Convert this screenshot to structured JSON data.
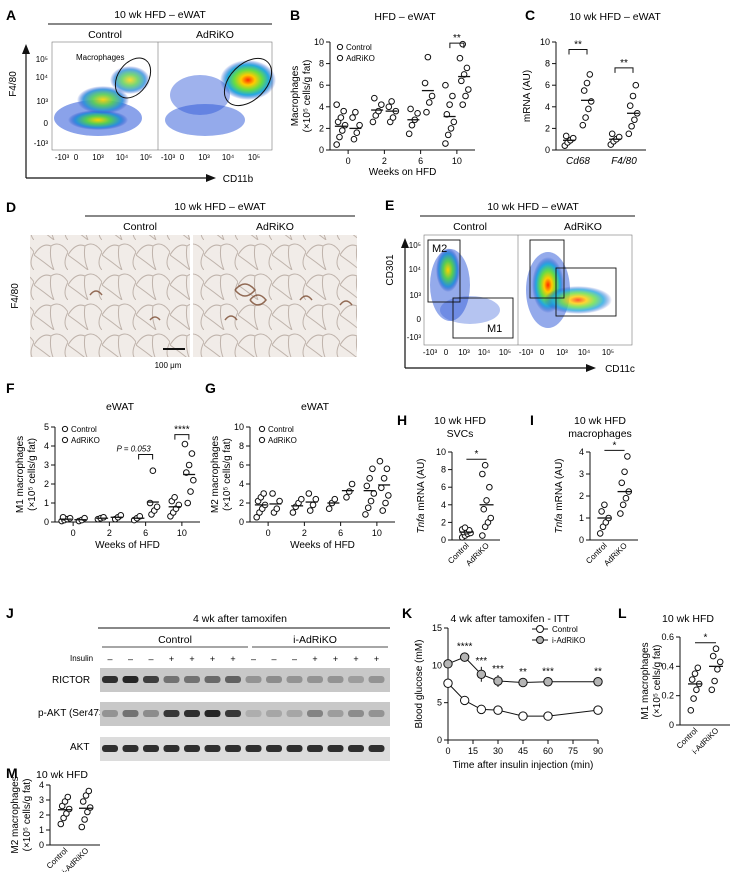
{
  "colors": {
    "ink": "#111111",
    "marker_fill_open": "#ffffff",
    "marker_fill_gray": "#b5b5b5",
    "tissue": "#e7e1dc",
    "stain": "#6b3a22",
    "blot_band": "#2b2b2b",
    "blot_bg": "#cfcfcf"
  },
  "panels": {
    "A": {
      "letter": "A",
      "title": "10 wk HFD – eWAT",
      "col1": "Control",
      "col2": "AdRiKO",
      "gate_label": "Macrophages",
      "ylabel": "F4/80",
      "xlabel": "CD11b",
      "y_ticks": [
        "10⁵",
        "10⁴",
        "10³",
        "0",
        "-10³"
      ],
      "x_ticks": [
        "-10³",
        "0",
        "10³",
        "10⁴",
        "10⁵"
      ]
    },
    "B": {
      "letter": "B"
    },
    "C": {
      "letter": "C"
    },
    "D": {
      "letter": "D",
      "title": "10 wk HFD – eWAT",
      "col1": "Control",
      "col2": "AdRiKO",
      "ylabel": "F4/80",
      "scale_bar": "100 μm"
    },
    "E": {
      "letter": "E",
      "title": "10 wk HFD – eWAT",
      "col1": "Control",
      "col2": "AdRiKO",
      "gate1": "M2",
      "gate2": "M1",
      "ylabel": "CD301",
      "xlabel": "CD11c",
      "y_ticks": [
        "10⁵",
        "10⁴",
        "10³",
        "0",
        "-10³"
      ],
      "x_ticks": [
        "-10³",
        "0",
        "10³",
        "10⁴",
        "10⁵"
      ]
    },
    "F": {
      "letter": "F"
    },
    "G": {
      "letter": "G"
    },
    "H": {
      "letter": "H"
    },
    "I": {
      "letter": "I"
    },
    "J": {
      "letter": "J",
      "title": "4 wk after tamoxifen",
      "group1": "Control",
      "group2": "i-AdRiKO",
      "insulin_label": "Insulin",
      "insulin_signs": [
        "–",
        "–",
        "–",
        "+",
        "+",
        "+",
        "+",
        "–",
        "–",
        "–",
        "+",
        "+",
        "+",
        "+"
      ],
      "rows": [
        "RICTOR",
        "p-AKT (Ser473)",
        "AKT"
      ]
    },
    "K": {
      "letter": "K"
    },
    "L": {
      "letter": "L"
    },
    "M": {
      "letter": "M"
    }
  },
  "chart_data": [
    {
      "id": "B",
      "type": "scatter",
      "title": "HFD – eWAT",
      "xlabel": "Weeks on HFD",
      "ylabel": "Macrophages\n(×10⁵ cells/g fat)",
      "ylim": [
        0,
        10
      ],
      "yticks": [
        0,
        2,
        4,
        6,
        8,
        10
      ],
      "categories": [
        "0",
        "2",
        "6",
        "10"
      ],
      "series": [
        {
          "name": "Control",
          "fill": "open",
          "groups": [
            [
              0.5,
              1.2,
              1.8,
              2.3,
              2.6,
              3.0,
              3.6,
              4.2
            ],
            [
              2.6,
              3.2,
              3.6,
              4.2,
              4.8
            ],
            [
              1.5,
              2.3,
              2.8,
              3.4,
              3.8
            ],
            [
              0.6,
              1.4,
              2.0,
              2.6,
              3.3,
              4.2,
              5.0,
              6.0
            ]
          ]
        },
        {
          "name": "AdRiKO",
          "fill": "open",
          "groups": [
            [
              1.0,
              1.6,
              2.3,
              3.0,
              3.5
            ],
            [
              2.6,
              3.0,
              3.6,
              4.0,
              4.5
            ],
            [
              3.5,
              4.4,
              5.0,
              6.2,
              8.6
            ],
            [
              4.2,
              5.0,
              5.6,
              6.4,
              7.0,
              7.6,
              8.5,
              9.8
            ]
          ]
        }
      ],
      "means": {
        "Control": [
          2.2,
          3.7,
          2.8,
          3.1
        ],
        "AdRiKO": [
          2.0,
          3.6,
          5.5,
          6.8
        ]
      },
      "annotations": [
        {
          "text": "**",
          "between": "10"
        }
      ]
    },
    {
      "id": "C",
      "type": "scatter",
      "title": "10 wk HFD – eWAT",
      "ylabel": "mRNA (AU)",
      "ylim": [
        0,
        10
      ],
      "yticks": [
        0,
        2,
        4,
        6,
        8,
        10
      ],
      "categories": [
        "Cd68",
        "F4/80"
      ],
      "series": [
        {
          "name": "Control",
          "groups": [
            [
              0.4,
              0.7,
              0.9,
              1.1,
              1.3
            ],
            [
              0.5,
              0.8,
              1.0,
              1.2,
              1.5
            ]
          ]
        },
        {
          "name": "AdRiKO",
          "groups": [
            [
              2.3,
              3.0,
              3.8,
              4.5,
              5.5,
              6.2,
              7.0
            ],
            [
              1.5,
              2.2,
              2.8,
              3.4,
              4.1,
              5.0,
              6.0
            ]
          ]
        }
      ],
      "means": {
        "Control": [
          0.9,
          1.0
        ],
        "AdRiKO": [
          4.6,
          3.4
        ]
      },
      "annotations": [
        {
          "text": "**",
          "between": "Cd68"
        },
        {
          "text": "**",
          "between": "F4/80"
        }
      ]
    },
    {
      "id": "F",
      "type": "scatter",
      "title": "eWAT",
      "xlabel": "Weeks of HFD",
      "ylabel": "M1 macrophages\n(×10⁵ cells/g fat)",
      "ylim": [
        0,
        5
      ],
      "yticks": [
        0,
        1,
        2,
        3,
        4,
        5
      ],
      "categories": [
        "0",
        "2",
        "6",
        "10"
      ],
      "series": [
        {
          "name": "Control",
          "groups": [
            [
              0.05,
              0.1,
              0.15,
              0.2,
              0.25
            ],
            [
              0.15,
              0.2,
              0.25
            ],
            [
              0.1,
              0.2,
              0.3
            ],
            [
              0.3,
              0.5,
              0.7,
              0.9,
              1.1,
              1.3
            ]
          ]
        },
        {
          "name": "AdRiKO",
          "groups": [
            [
              0.05,
              0.1,
              0.2
            ],
            [
              0.15,
              0.25,
              0.35
            ],
            [
              0.4,
              0.6,
              0.8,
              1.0,
              2.7
            ],
            [
              1.0,
              1.6,
              2.2,
              2.6,
              3.0,
              3.6,
              4.1
            ]
          ]
        }
      ],
      "means": {
        "Control": [
          0.15,
          0.2,
          0.2,
          0.8
        ],
        "AdRiKO": [
          0.12,
          0.25,
          1.05,
          2.5
        ]
      },
      "annotations": [
        {
          "text": "P = 0.053",
          "between": "6"
        },
        {
          "text": "****",
          "between": "10"
        }
      ]
    },
    {
      "id": "G",
      "type": "scatter",
      "title": "eWAT",
      "xlabel": "Weeks of HFD",
      "ylabel": "M2 macrophages\n(×10⁵ cells/g fat)",
      "ylim": [
        0,
        10
      ],
      "yticks": [
        0,
        2,
        4,
        6,
        8,
        10
      ],
      "categories": [
        "0",
        "2",
        "6",
        "10"
      ],
      "series": [
        {
          "name": "Control",
          "groups": [
            [
              0.5,
              1.0,
              1.4,
              1.8,
              2.2,
              2.6,
              3.0
            ],
            [
              1.0,
              1.6,
              2.0,
              2.4
            ],
            [
              1.4,
              2.0,
              2.4
            ],
            [
              0.8,
              1.5,
              2.2,
              3.0,
              3.8,
              4.6,
              5.6
            ]
          ]
        },
        {
          "name": "AdRiKO",
          "groups": [
            [
              1.0,
              1.4,
              2.2,
              3.0
            ],
            [
              1.2,
              1.8,
              2.4,
              3.0
            ],
            [
              2.6,
              3.2,
              4.0
            ],
            [
              1.2,
              2.0,
              2.8,
              3.6,
              4.6,
              5.6,
              6.4
            ]
          ]
        }
      ],
      "means": {
        "Control": [
          1.8,
          1.7,
          2.0,
          3.3
        ],
        "AdRiKO": [
          1.9,
          2.1,
          3.3,
          3.9
        ]
      }
    },
    {
      "id": "H",
      "type": "scatter",
      "title_line1": "10 wk HFD",
      "title_line2": "SVCs",
      "ylabel": "mRNA (AU)",
      "ylabel_gene": "Tnfa",
      "ylim": [
        0,
        10
      ],
      "yticks": [
        0,
        2,
        4,
        6,
        8,
        10
      ],
      "categories": [
        "Control",
        "AdRiKO"
      ],
      "values": [
        [
          0.3,
          0.5,
          0.7,
          0.8,
          0.9,
          1.0,
          1.1,
          1.2,
          1.4
        ],
        [
          0.5,
          1.5,
          2.0,
          2.5,
          3.5,
          4.5,
          6.0,
          7.5,
          8.5
        ]
      ],
      "means": [
        0.9,
        4.0
      ],
      "annotations": [
        {
          "text": "*"
        }
      ]
    },
    {
      "id": "I",
      "type": "scatter",
      "title_line1": "10 wk HFD",
      "title_line2": "macrophages",
      "ylabel": "mRNA (AU)",
      "ylabel_gene": "Tnfa",
      "ylim": [
        0,
        4
      ],
      "yticks": [
        0,
        1,
        2,
        3,
        4
      ],
      "categories": [
        "Control",
        "AdRiKO"
      ],
      "values": [
        [
          0.3,
          0.6,
          0.8,
          1.0,
          1.3,
          1.6
        ],
        [
          1.2,
          1.6,
          1.9,
          2.2,
          2.6,
          3.1,
          3.8
        ]
      ],
      "means": [
        1.0,
        2.2
      ],
      "annotations": [
        {
          "text": "*"
        }
      ]
    },
    {
      "id": "K",
      "type": "line",
      "title": "4 wk after tamoxifen - ITT",
      "xlabel": "Time after insulin injection (min)",
      "ylabel": "Blood glucose (mM)",
      "x": [
        0,
        10,
        20,
        30,
        45,
        60,
        90
      ],
      "xticks": [
        0,
        15,
        30,
        45,
        60,
        75,
        90
      ],
      "ylim": [
        0,
        15
      ],
      "yticks": [
        0,
        5,
        10,
        15
      ],
      "series": [
        {
          "name": "Control",
          "fill": "open",
          "values": [
            7.6,
            5.3,
            4.1,
            4.0,
            3.2,
            3.2,
            4.0
          ],
          "err": [
            0.4,
            0.4,
            0.3,
            0.3,
            0.3,
            0.4,
            0.3
          ]
        },
        {
          "name": "i-AdRiKO",
          "fill": "gray",
          "values": [
            10.2,
            11.1,
            8.8,
            7.9,
            7.7,
            7.8,
            7.8
          ],
          "err": [
            0.8,
            0.6,
            1.0,
            0.8,
            0.6,
            0.6,
            0.6
          ]
        }
      ],
      "annotations": [
        {
          "x": 10,
          "text": "****"
        },
        {
          "x": 20,
          "text": "***"
        },
        {
          "x": 30,
          "text": "***"
        },
        {
          "x": 45,
          "text": "**"
        },
        {
          "x": 60,
          "text": "***"
        },
        {
          "x": 90,
          "text": "**"
        }
      ]
    },
    {
      "id": "L",
      "type": "scatter",
      "title": "10 wk HFD",
      "ylabel": "M1 macrophages\n(×10⁵ cells/g fat)",
      "ylim": [
        0,
        0.6
      ],
      "yticks": [
        0,
        0.2,
        0.4,
        0.6
      ],
      "ytick_labels": [
        "0",
        "0.2",
        "0.4",
        "0.6"
      ],
      "categories": [
        "Control",
        "i-AdRiKO"
      ],
      "values": [
        [
          0.1,
          0.18,
          0.24,
          0.28,
          0.31,
          0.35,
          0.39
        ],
        [
          0.24,
          0.3,
          0.38,
          0.43,
          0.47,
          0.52
        ]
      ],
      "means": [
        0.28,
        0.4
      ],
      "annotations": [
        {
          "text": "*"
        }
      ]
    },
    {
      "id": "M",
      "type": "scatter",
      "title": "10 wk HFD",
      "ylabel": "M2 macrophages\n(×10⁵ cells/g fat)",
      "ylim": [
        0,
        4
      ],
      "yticks": [
        0,
        1,
        2,
        3,
        4
      ],
      "categories": [
        "Control",
        "i-AdRiKO"
      ],
      "values": [
        [
          1.4,
          1.8,
          2.1,
          2.4,
          2.6,
          2.9,
          3.2
        ],
        [
          1.2,
          1.7,
          2.2,
          2.5,
          2.9,
          3.3,
          3.6
        ]
      ],
      "means": [
        2.35,
        2.45
      ]
    }
  ]
}
